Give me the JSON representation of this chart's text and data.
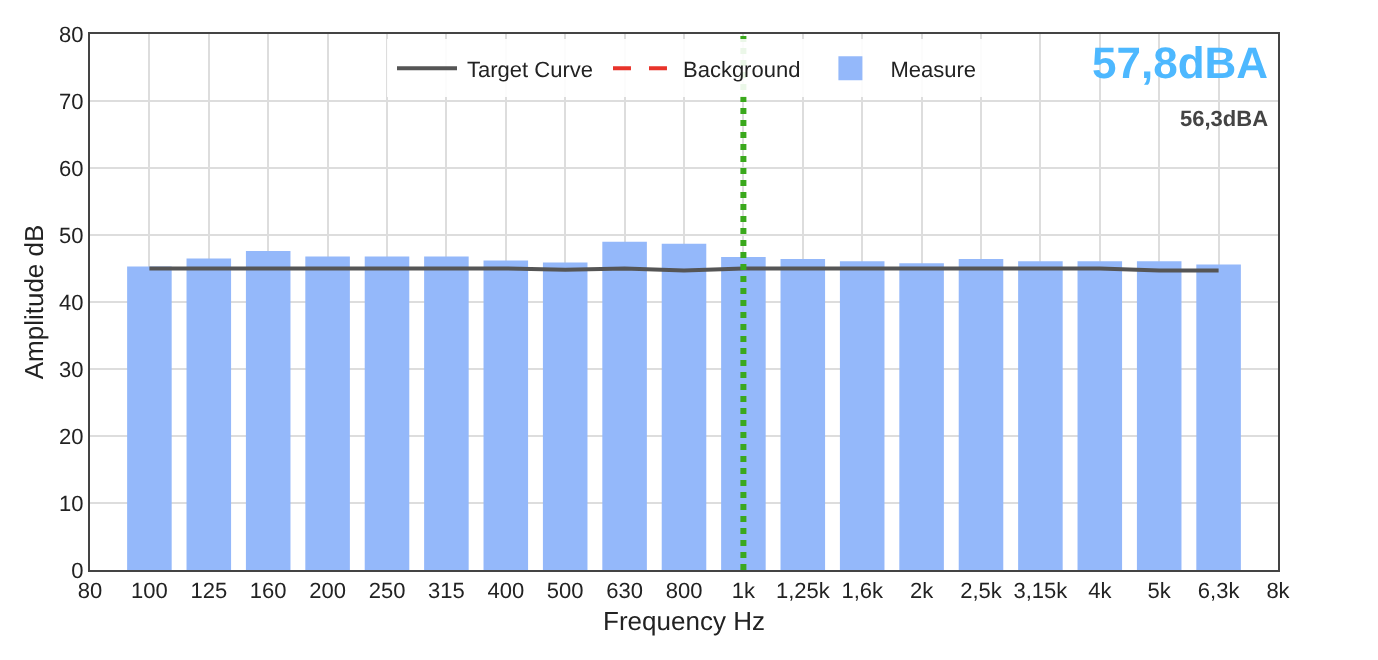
{
  "chart_data": {
    "type": "bar",
    "xlabel": "Frequency Hz",
    "ylabel": "Amplitude dB",
    "categories": [
      "80",
      "100",
      "125",
      "160",
      "200",
      "250",
      "315",
      "400",
      "500",
      "630",
      "800",
      "1k",
      "1,25k",
      "1,6k",
      "2k",
      "2,5k",
      "3,15k",
      "4k",
      "5k",
      "6,3k",
      "8k"
    ],
    "series": [
      {
        "name": "Target Curve",
        "type": "line",
        "color": "#555555",
        "values": [
          null,
          45.0,
          45.0,
          45.0,
          45.0,
          45.0,
          45.0,
          45.0,
          44.8,
          45.0,
          44.7,
          45.0,
          45.0,
          45.0,
          45.0,
          45.0,
          45.0,
          45.0,
          44.7,
          44.7,
          null
        ]
      },
      {
        "name": "Background",
        "type": "line",
        "color": "#e8332a",
        "line_style": "dashed",
        "values": [
          null,
          null,
          null,
          null,
          null,
          null,
          null,
          null,
          null,
          null,
          null,
          null,
          null,
          null,
          null,
          null,
          null,
          null,
          null,
          null,
          null
        ]
      },
      {
        "name": "Measure",
        "color": "#94b8fa",
        "values": [
          null,
          45.3,
          46.5,
          47.6,
          46.8,
          46.8,
          46.8,
          46.2,
          45.9,
          49.0,
          48.7,
          46.7,
          46.4,
          46.1,
          45.8,
          46.4,
          46.1,
          46.1,
          46.1,
          45.6,
          null
        ]
      }
    ],
    "ylim": [
      0,
      80
    ],
    "yticks": [
      0,
      10,
      20,
      30,
      40,
      50,
      60,
      70,
      80
    ],
    "grid": true,
    "legend": "top",
    "ref_lines": [
      {
        "axis": "x",
        "value": "1k",
        "color": "#3aa81c",
        "line_style": "dotted"
      }
    ],
    "annotations": [
      "57,8dBA",
      "56,3dBA"
    ]
  }
}
